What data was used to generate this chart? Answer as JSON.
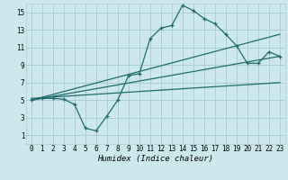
{
  "title": "",
  "xlabel": "Humidex (Indice chaleur)",
  "xlim": [
    -0.5,
    23.5
  ],
  "ylim": [
    0,
    16
  ],
  "xticks": [
    0,
    1,
    2,
    3,
    4,
    5,
    6,
    7,
    8,
    9,
    10,
    11,
    12,
    13,
    14,
    15,
    16,
    17,
    18,
    19,
    20,
    21,
    22,
    23
  ],
  "yticks": [
    1,
    3,
    5,
    7,
    9,
    11,
    13,
    15
  ],
  "bg_color": "#cce8ec",
  "grid_color": "#aacdd4",
  "line_color": "#1e6b6b",
  "main_curve": {
    "x": [
      0,
      1,
      2,
      3,
      4,
      5,
      6,
      7,
      8,
      9,
      10,
      11,
      12,
      13,
      14,
      15,
      16,
      17,
      18,
      19,
      20,
      21,
      22,
      23
    ],
    "y": [
      5.0,
      5.2,
      5.2,
      5.1,
      4.5,
      1.8,
      1.5,
      3.2,
      5.0,
      7.8,
      8.0,
      12.0,
      13.2,
      13.5,
      15.8,
      15.2,
      14.3,
      13.7,
      12.5,
      11.2,
      9.2,
      9.2,
      10.5,
      10.0
    ]
  },
  "line2": {
    "x": [
      0,
      23
    ],
    "y": [
      5.0,
      12.5
    ]
  },
  "line3": {
    "x": [
      0,
      23
    ],
    "y": [
      5.0,
      10.0
    ]
  },
  "line4": {
    "x": [
      0,
      23
    ],
    "y": [
      5.2,
      7.0
    ]
  }
}
